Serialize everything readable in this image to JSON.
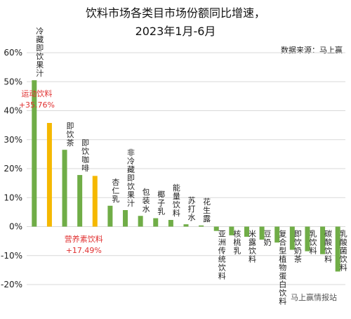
{
  "chart_data": {
    "type": "bar",
    "title_line1": "饮料市场各类目市场份额同比增速，",
    "title_line2": "2023年1月-6月",
    "source": "数据来源：马上赢",
    "watermark": "马上赢情报站",
    "ylim": [
      -0.2,
      0.6
    ],
    "yticks": [
      "60%",
      "50%",
      "40%",
      "30%",
      "20%",
      "10%",
      "0%",
      "-10%",
      "-20%"
    ],
    "ytick_values": [
      0.6,
      0.5,
      0.4,
      0.3,
      0.2,
      0.1,
      0,
      -0.1,
      -0.2
    ],
    "colors": {
      "default": "#70ad47",
      "highlight": "#f5b800",
      "callout": "#e03030",
      "grid": "#d9d9d9"
    },
    "categories": [
      "冷藏即饮果汁",
      "运动饮料",
      "即饮茶",
      "即饮咖啡",
      "营养素饮料",
      "杏仁乳",
      "非冷藏即饮果汁",
      "包装水",
      "椰子乳",
      "能量饮料",
      "苏打水",
      "花生露",
      "亚洲传统饮料",
      "核桃乳",
      "米露饮料",
      "豆奶",
      "复合型植物蛋白饮料",
      "即饮奶茶",
      "乳饮料",
      "碳酸饮料",
      "乳酸菌饮料"
    ],
    "values": [
      0.505,
      0.3576,
      0.265,
      0.178,
      0.1749,
      0.072,
      0.057,
      0.037,
      0.029,
      0.023,
      0.008,
      0.004,
      -0.015,
      -0.03,
      -0.035,
      -0.045,
      -0.055,
      -0.08,
      -0.085,
      -0.095,
      -0.155
    ],
    "highlight": [
      false,
      true,
      false,
      false,
      true,
      false,
      false,
      false,
      false,
      false,
      false,
      false,
      false,
      false,
      false,
      false,
      false,
      false,
      false,
      false,
      false
    ],
    "callouts": [
      {
        "index": 1,
        "name": "运动饮料",
        "value": "+35.76%"
      },
      {
        "index": 4,
        "name": "营养素饮料",
        "value": "+17.49%"
      }
    ]
  }
}
